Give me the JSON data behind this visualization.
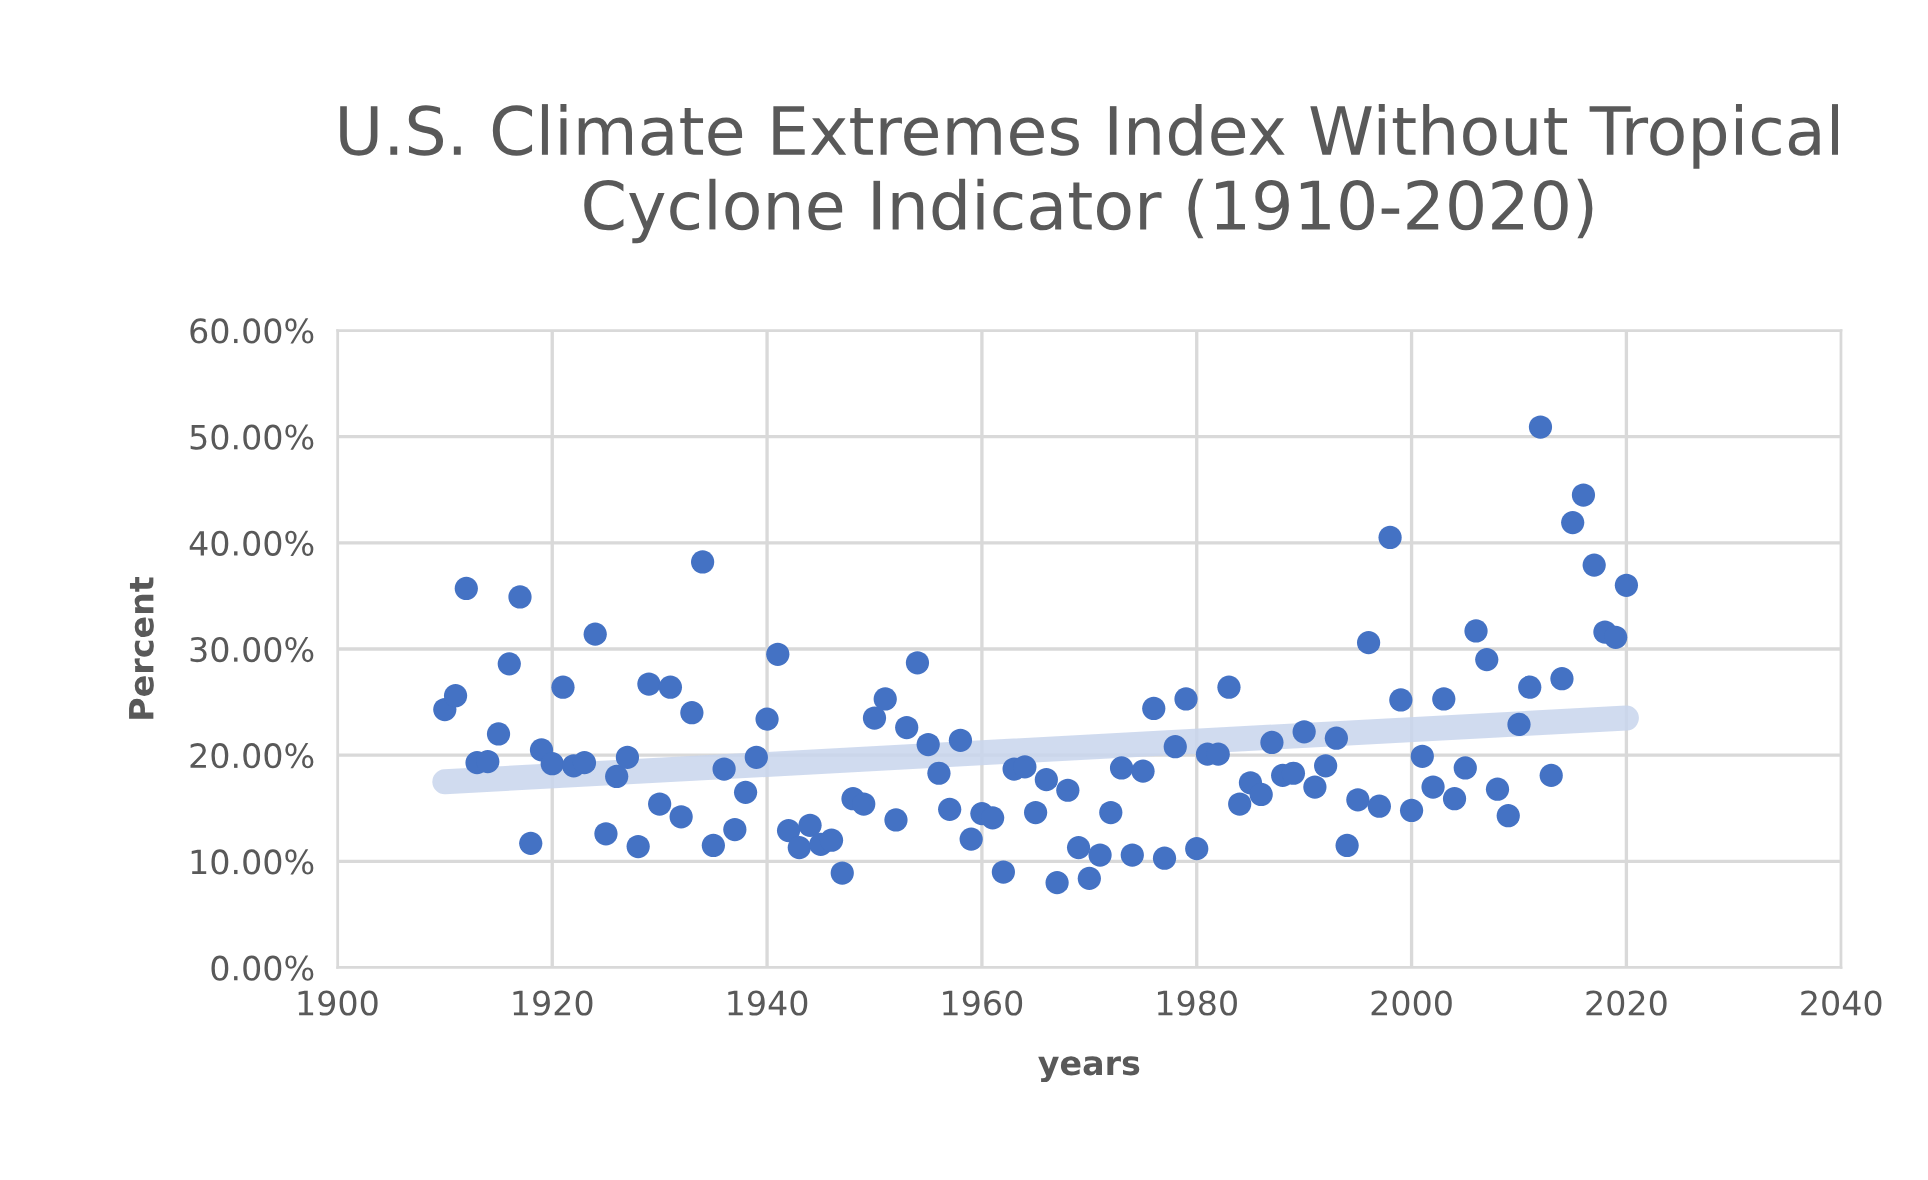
{
  "chart_data": {
    "type": "scatter",
    "title": "U.S. Climate Extremes Index Without Tropical Cyclone Indicator (1910-2020)",
    "xlabel": "years",
    "ylabel": "Percent",
    "xlim": [
      1900,
      2040
    ],
    "xticks": [
      1900,
      1920,
      1940,
      1960,
      1980,
      2000,
      2020,
      2040
    ],
    "ylim": [
      0,
      60
    ],
    "yticks": [
      {
        "value": 0,
        "label": "0.00%"
      },
      {
        "value": 10,
        "label": "10.00%"
      },
      {
        "value": 20,
        "label": "20.00%"
      },
      {
        "value": 30,
        "label": "30.00%"
      },
      {
        "value": 40,
        "label": "40.00%"
      },
      {
        "value": 50,
        "label": "50.00%"
      },
      {
        "value": 60,
        "label": "60.00%"
      }
    ],
    "grid": true,
    "legend": false,
    "series": [
      {
        "marker": "circle",
        "color": "#4472c4",
        "x": [
          1910,
          1911,
          1912,
          1913,
          1914,
          1915,
          1916,
          1917,
          1918,
          1919,
          1920,
          1921,
          1922,
          1923,
          1924,
          1925,
          1926,
          1927,
          1928,
          1929,
          1930,
          1931,
          1932,
          1933,
          1934,
          1935,
          1936,
          1937,
          1938,
          1939,
          1940,
          1941,
          1942,
          1943,
          1944,
          1945,
          1946,
          1947,
          1948,
          1949,
          1950,
          1951,
          1952,
          1953,
          1954,
          1955,
          1956,
          1957,
          1958,
          1959,
          1960,
          1961,
          1962,
          1963,
          1964,
          1965,
          1966,
          1967,
          1968,
          1969,
          1970,
          1971,
          1972,
          1973,
          1974,
          1975,
          1976,
          1977,
          1978,
          1979,
          1980,
          1981,
          1982,
          1983,
          1984,
          1985,
          1986,
          1987,
          1988,
          1989,
          1990,
          1991,
          1992,
          1993,
          1994,
          1995,
          1996,
          1997,
          1998,
          1999,
          2000,
          2001,
          2002,
          2003,
          2004,
          2005,
          2006,
          2007,
          2008,
          2009,
          2010,
          2011,
          2012,
          2013,
          2014,
          2015,
          2016,
          2017,
          2018,
          2019,
          2020
        ],
        "values": [
          24.3,
          25.6,
          35.7,
          19.3,
          19.4,
          22.0,
          28.6,
          34.9,
          11.7,
          20.5,
          19.2,
          26.4,
          19.0,
          19.3,
          31.4,
          12.6,
          18.0,
          19.8,
          11.4,
          26.7,
          15.4,
          26.4,
          14.2,
          24.0,
          38.2,
          11.5,
          18.7,
          13.0,
          16.5,
          19.8,
          23.4,
          29.5,
          12.9,
          11.3,
          13.4,
          11.6,
          12.0,
          8.9,
          15.9,
          15.4,
          23.5,
          25.3,
          13.9,
          22.6,
          28.7,
          21.0,
          18.3,
          14.9,
          21.4,
          12.1,
          14.5,
          14.1,
          9.0,
          18.7,
          18.9,
          14.6,
          17.7,
          8.0,
          16.7,
          11.3,
          8.4,
          10.6,
          14.6,
          18.8,
          10.6,
          18.5,
          24.4,
          10.3,
          20.8,
          25.3,
          11.2,
          20.1,
          20.1,
          26.4,
          15.4,
          17.4,
          16.3,
          21.2,
          18.1,
          18.3,
          22.2,
          17.0,
          19.0,
          21.6,
          11.5,
          15.8,
          30.6,
          15.2,
          40.5,
          25.2,
          14.8,
          19.9,
          17.0,
          25.3,
          15.9,
          18.8,
          31.7,
          29.0,
          16.8,
          14.3,
          22.9,
          26.4,
          50.9,
          18.1,
          27.2,
          41.9,
          44.5,
          37.9,
          31.6,
          31.1,
          36.0
        ]
      },
      {
        "type": "line",
        "marker": "none",
        "line_style": "solid",
        "color": "#c8d5ec",
        "x": [
          1910,
          2020
        ],
        "values": [
          17.5,
          23.5
        ]
      }
    ]
  }
}
